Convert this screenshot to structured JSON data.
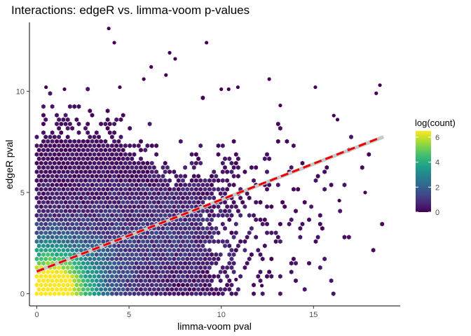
{
  "chart_data": {
    "type": "heatmap",
    "subtype": "hexbin",
    "title": "Interactions: edgeR vs. limma-voom p-values",
    "xlabel": "limma-voom pval",
    "ylabel": "edgeR pval",
    "xlim": [
      -0.4,
      19.7
    ],
    "ylim": [
      -0.6,
      13.4
    ],
    "x_ticks": [
      0,
      5,
      10,
      15
    ],
    "y_ticks": [
      0,
      5,
      10
    ],
    "grid": false,
    "color_scale": {
      "name": "viridis",
      "legend_title": "log(count)",
      "min": 0,
      "max": 6.5,
      "ticks": [
        0,
        2,
        4,
        6
      ],
      "colors": [
        "#440154",
        "#482878",
        "#3E4A89",
        "#31688E",
        "#26828E",
        "#1F9E89",
        "#35B779",
        "#6DCD59",
        "#B4DE2C",
        "#FDE725"
      ]
    },
    "reference_line": {
      "color": "#c8c8c8",
      "from": [
        0,
        1.1
      ],
      "to": [
        18.8,
        7.75
      ]
    },
    "fit_line": {
      "color": "#ee0000",
      "style": "dashed",
      "from": [
        0,
        1.1
      ],
      "to": [
        18.6,
        7.7
      ]
    },
    "outlier_points": [
      [
        3.9,
        13.1
      ],
      [
        4.2,
        12.4
      ],
      [
        9.2,
        12.4
      ],
      [
        7.2,
        11.9
      ],
      [
        7.5,
        11.6
      ],
      [
        6.2,
        11.2
      ],
      [
        7.0,
        10.8
      ],
      [
        5.8,
        10.6
      ],
      [
        12.6,
        10.6
      ],
      [
        0.5,
        10.2
      ],
      [
        1.5,
        10.1
      ],
      [
        4.5,
        10.2
      ],
      [
        10.0,
        10.1
      ],
      [
        10.4,
        10.1
      ],
      [
        10.9,
        10.2
      ],
      [
        15.1,
        10.2
      ],
      [
        18.6,
        10.3
      ],
      [
        18.4,
        9.9
      ],
      [
        13.2,
        9.3
      ],
      [
        16.1,
        8.8
      ],
      [
        16.3,
        8.6
      ],
      [
        17.8,
        5.0
      ],
      [
        16.4,
        4.6
      ],
      [
        12.2,
        0.4
      ],
      [
        10.8,
        0.7
      ]
    ]
  }
}
